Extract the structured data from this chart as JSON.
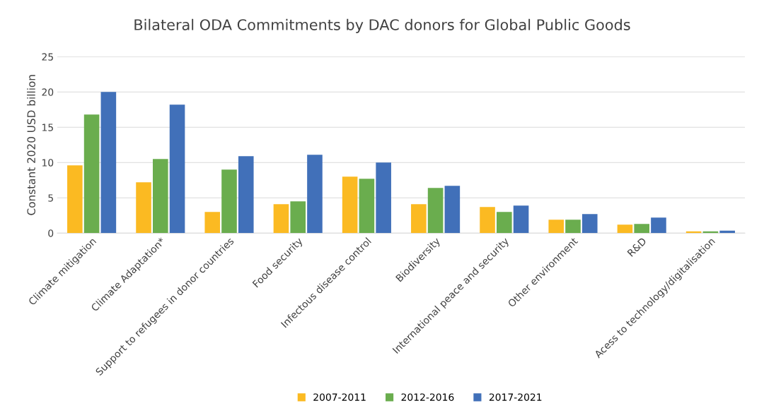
{
  "chart_data": {
    "type": "bar",
    "title": "Bilateral ODA Commitments by DAC donors for Global Public Goods",
    "ylabel": "Constant 2020 USD billion",
    "categories": [
      "Climate mitigation",
      "Climate Adaptation*",
      "Support to refugees in donor countries",
      "Food security",
      "Infectous disease control",
      "Biodiversity",
      "International peace and security",
      "Other environment",
      "R&D",
      "Acess to technology/digitalisation"
    ],
    "series": [
      {
        "name": "2007-2011",
        "color": "#fbba22",
        "values": [
          9.6,
          7.2,
          3.0,
          4.1,
          8.0,
          4.1,
          3.7,
          1.9,
          1.2,
          0.25
        ]
      },
      {
        "name": "2012-2016",
        "color": "#6aad4e",
        "values": [
          16.8,
          10.5,
          9.0,
          4.5,
          7.7,
          6.4,
          3.0,
          1.9,
          1.3,
          0.25
        ]
      },
      {
        "name": "2017-2021",
        "color": "#4170b9",
        "values": [
          20.0,
          18.2,
          10.9,
          11.1,
          10.0,
          6.7,
          3.9,
          2.7,
          2.2,
          0.35
        ]
      }
    ],
    "ylim": [
      0,
      25
    ],
    "yticks": [
      0,
      5,
      10,
      15,
      20,
      25
    ],
    "grid": "y",
    "legend": "bottom"
  }
}
